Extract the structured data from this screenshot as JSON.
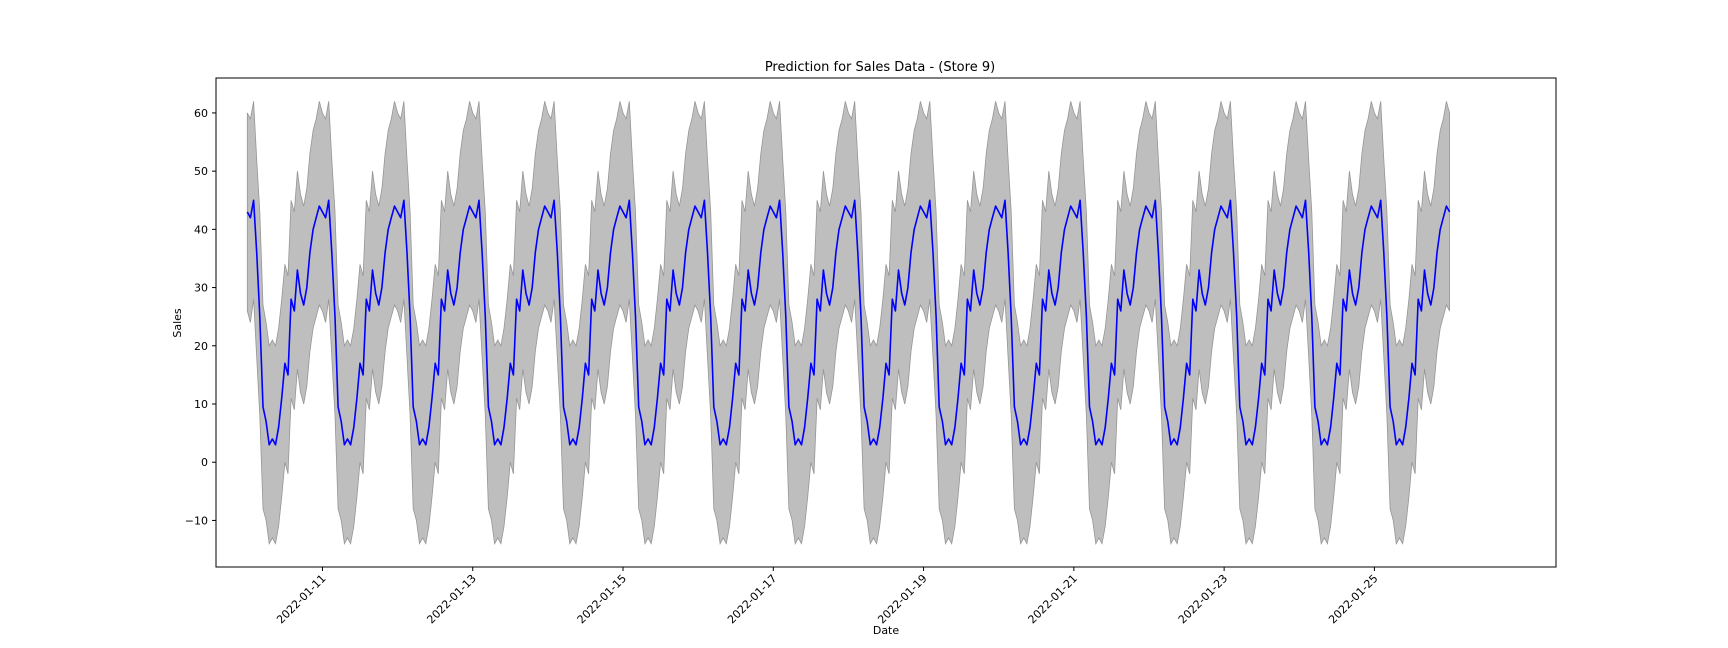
{
  "chart_data": {
    "type": "line",
    "title": "Prediction for Sales Data - (Store 9)",
    "xlabel": "Date",
    "ylabel": "Sales",
    "x_range": [
      "2022-01-09T14:00",
      "2022-01-27T10:00"
    ],
    "ylim": [
      -18,
      66
    ],
    "yticks": [
      -10,
      0,
      10,
      20,
      30,
      40,
      50,
      60
    ],
    "xticks": [
      "2022-01-11",
      "2022-01-13",
      "2022-01-15",
      "2022-01-17",
      "2022-01-19",
      "2022-01-21",
      "2022-01-23",
      "2022-01-25"
    ],
    "grid": false,
    "legend": "none",
    "colors": {
      "prediction": "#0000ff",
      "interval": "#bebebe",
      "interval_edge": "#969696"
    },
    "series_x_start": "2022-01-10T00:00",
    "series_x_end": "2022-01-26T00:00",
    "series_step_hours": 1,
    "daily_profile_prediction": [
      43,
      42,
      45,
      36,
      25,
      9.5,
      7,
      3,
      4,
      3,
      6,
      11,
      17,
      15,
      28,
      26,
      33,
      29,
      27,
      30,
      36,
      40,
      42,
      44
    ],
    "daily_profile_interval": [
      [
        26,
        60
      ],
      [
        24,
        59
      ],
      [
        28,
        62
      ],
      [
        18,
        52
      ],
      [
        8,
        43
      ],
      [
        -8,
        27
      ],
      [
        -10,
        24
      ],
      [
        -14,
        20
      ],
      [
        -13,
        21
      ],
      [
        -14,
        20
      ],
      [
        -11,
        23
      ],
      [
        -6,
        28
      ],
      [
        0,
        34
      ],
      [
        -2,
        32
      ],
      [
        11,
        45
      ],
      [
        9,
        43
      ],
      [
        16,
        50
      ],
      [
        12,
        46
      ],
      [
        10,
        44
      ],
      [
        13,
        47
      ],
      [
        19,
        53
      ],
      [
        23,
        57
      ],
      [
        25,
        59
      ],
      [
        27,
        62
      ]
    ]
  }
}
